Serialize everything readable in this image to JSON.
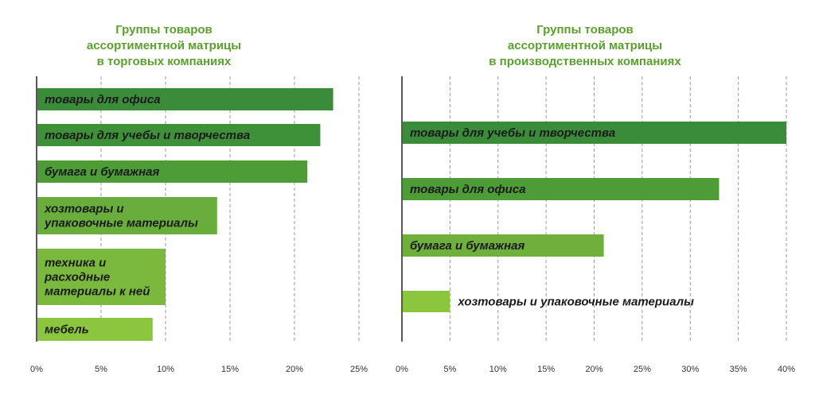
{
  "colors": {
    "title": "#5aa02c",
    "bar_dark": "#3a8c3a",
    "bar_mid": "#5aa63a",
    "bar_light": "#8cc63f",
    "grid": "#9a9a9a",
    "axis": "#222222"
  },
  "chart_data": [
    {
      "type": "bar",
      "orientation": "horizontal",
      "title": "Группы товаров ассортиментной матрицы в торговых компаниях",
      "title_lines": [
        "Группы товаров",
        "ассортиментной матрицы",
        "в торговых компаниях"
      ],
      "categories": [
        [
          "товары для офиса"
        ],
        [
          "товары для учебы и творчества"
        ],
        [
          "бумага и бумажная"
        ],
        [
          "хозтовары и",
          "упаковочные материалы"
        ],
        [
          "техника и",
          "расходные",
          "материалы к ней"
        ],
        [
          "мебель"
        ]
      ],
      "values": [
        23,
        22,
        21,
        14,
        10,
        9
      ],
      "bar_colors": [
        "#3a8c3a",
        "#3f9139",
        "#4d9c38",
        "#69ad3c",
        "#7ab83e",
        "#8cc63f"
      ],
      "x_ticks": [
        "0%",
        "5%",
        "10%",
        "15%",
        "20%",
        "25%"
      ],
      "xlim": [
        0,
        25
      ],
      "grid": true
    },
    {
      "type": "bar",
      "orientation": "horizontal",
      "title": "Группы товаров ассортиментной матрицы в производственных компаниях",
      "title_lines": [
        "Группы товаров",
        "ассортиментной матрицы",
        "в производственных компаниях"
      ],
      "categories": [
        [
          "товары для учебы и творчества"
        ],
        [
          "товары для офиса"
        ],
        [
          "бумага и бумажная"
        ],
        [
          "хозтовары и упаковочные материалы"
        ]
      ],
      "values": [
        40,
        33,
        21,
        5
      ],
      "bar_colors": [
        "#3a8c3a",
        "#4d9c38",
        "#6fb03c",
        "#8cc63f"
      ],
      "x_ticks": [
        "0%",
        "5%",
        "10%",
        "15%",
        "20%",
        "25%",
        "30%",
        "35%",
        "40%"
      ],
      "xlim": [
        0,
        40
      ],
      "grid": true
    }
  ]
}
